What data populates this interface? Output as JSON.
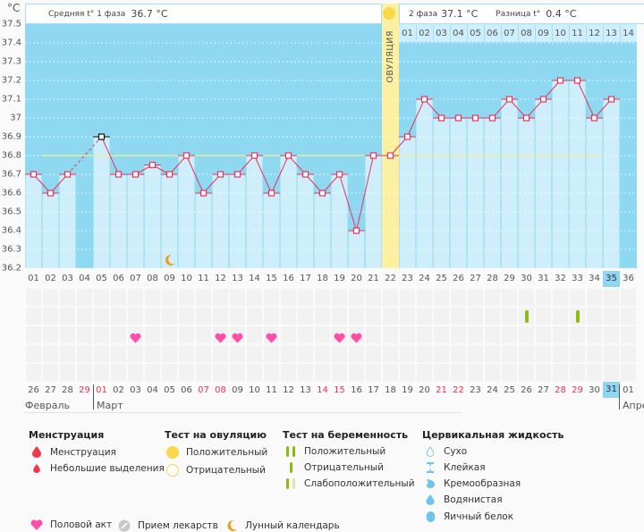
{
  "unit": "°C",
  "header": {
    "phase1_label": "Средняя t° 1 фаза",
    "phase1_value": "36.7 °C",
    "phase2_label": "2 фаза",
    "phase2_value": "37.1 °C",
    "diff_label": "Разница t°",
    "diff_value": "0.4 °C"
  },
  "ovulation_label": "ОВУЛЯЦИЯ",
  "phase2_days": [
    "01",
    "02",
    "03",
    "04",
    "05",
    "06",
    "07",
    "08",
    "09",
    "10",
    "11",
    "12",
    "13",
    "14"
  ],
  "colors": {
    "bar": "#cdeefa",
    "background": "#8fd8f2",
    "line": "#e8345a",
    "coverline": "#f5ef8a",
    "ovulation": "#fdf0a0",
    "heart": "#ff4fa8",
    "test": "#8cbc14"
  },
  "chart_data": {
    "type": "bar",
    "title": "",
    "xlabel": "",
    "ylabel": "°C",
    "ylim": [
      36.2,
      37.5
    ],
    "yticks": [
      "37.5",
      "37.4",
      "37.3",
      "37.2",
      "37.1",
      "37",
      "36.9",
      "36.8",
      "36.7",
      "36.6",
      "36.5",
      "36.4",
      "36.3",
      "36.2"
    ],
    "grid": true,
    "coverline": 36.8,
    "ovulation_day": 22,
    "current_day": 35,
    "categories": [
      "01",
      "02",
      "03",
      "04",
      "05",
      "06",
      "07",
      "08",
      "09",
      "10",
      "11",
      "12",
      "13",
      "14",
      "15",
      "16",
      "17",
      "18",
      "19",
      "20",
      "21",
      "22",
      "23",
      "24",
      "25",
      "26",
      "27",
      "28",
      "29",
      "30",
      "31",
      "32",
      "33",
      "34",
      "35",
      "36"
    ],
    "values": [
      36.7,
      36.6,
      36.7,
      null,
      36.9,
      36.7,
      36.7,
      36.75,
      36.7,
      36.8,
      36.6,
      36.7,
      36.7,
      36.8,
      36.6,
      36.8,
      36.7,
      36.6,
      36.7,
      36.4,
      36.8,
      36.8,
      36.9,
      37.1,
      37.0,
      37.0,
      37.0,
      37.0,
      37.1,
      37.0,
      37.1,
      37.2,
      37.2,
      37.0,
      37.1,
      null
    ],
    "excluded_days": [
      5
    ],
    "series": [
      {
        "name": "Базальная температура",
        "values": [
          36.7,
          36.6,
          36.7,
          null,
          36.9,
          36.7,
          36.7,
          36.75,
          36.7,
          36.8,
          36.6,
          36.7,
          36.7,
          36.8,
          36.6,
          36.8,
          36.7,
          36.6,
          36.7,
          36.4,
          36.8,
          36.8,
          36.9,
          37.1,
          37.0,
          37.0,
          37.0,
          37.0,
          37.1,
          37.0,
          37.1,
          37.2,
          37.2,
          37.0,
          37.1,
          null
        ]
      }
    ],
    "annotations": [
      {
        "type": "lunar",
        "day": 9
      },
      {
        "type": "intercourse",
        "days": [
          7,
          12,
          13,
          15,
          19,
          20
        ]
      },
      {
        "type": "pregnancy-test-negative",
        "days": [
          30,
          33
        ]
      }
    ]
  },
  "calendar_dates": [
    {
      "d": "26",
      "red": false
    },
    {
      "d": "27",
      "red": false
    },
    {
      "d": "28",
      "red": false
    },
    {
      "d": "29",
      "red": true
    },
    {
      "d": "01",
      "red": true
    },
    {
      "d": "02",
      "red": false
    },
    {
      "d": "03",
      "red": false
    },
    {
      "d": "04",
      "red": false
    },
    {
      "d": "05",
      "red": false
    },
    {
      "d": "06",
      "red": false
    },
    {
      "d": "07",
      "red": true
    },
    {
      "d": "08",
      "red": true
    },
    {
      "d": "09",
      "red": false
    },
    {
      "d": "10",
      "red": false
    },
    {
      "d": "11",
      "red": false
    },
    {
      "d": "12",
      "red": false
    },
    {
      "d": "13",
      "red": false
    },
    {
      "d": "14",
      "red": true
    },
    {
      "d": "15",
      "red": true
    },
    {
      "d": "16",
      "red": false
    },
    {
      "d": "17",
      "red": false
    },
    {
      "d": "18",
      "red": false
    },
    {
      "d": "19",
      "red": false
    },
    {
      "d": "20",
      "red": false
    },
    {
      "d": "21",
      "red": true
    },
    {
      "d": "22",
      "red": true
    },
    {
      "d": "23",
      "red": false
    },
    {
      "d": "24",
      "red": false
    },
    {
      "d": "25",
      "red": false
    },
    {
      "d": "26",
      "red": false
    },
    {
      "d": "27",
      "red": false
    },
    {
      "d": "28",
      "red": true
    },
    {
      "d": "29",
      "red": true
    },
    {
      "d": "30",
      "red": false
    },
    {
      "d": "31",
      "red": false
    },
    {
      "d": "01",
      "red": false
    }
  ],
  "months": {
    "feb": "Февраль",
    "mar": "Март",
    "apr": "Апре"
  },
  "legend": {
    "menstruation": {
      "title": "Менструация",
      "items": [
        "Менструация",
        "Небольшие выделения"
      ]
    },
    "ovulation_test": {
      "title": "Тест на овуляцию",
      "items": [
        "Положительный",
        "Отрицательный"
      ]
    },
    "pregnancy_test": {
      "title": "Тест на беременность",
      "items": [
        "Положительный",
        "Отрицательный",
        "Слабоположительный"
      ]
    },
    "cervical": {
      "title": "Цервикальная жидкость",
      "items": [
        "Сухо",
        "Клейкая",
        "Кремообразная",
        "Водянистая",
        "Яичный белок"
      ]
    },
    "misc": [
      "Половой акт",
      "Прием лекарств",
      "Лунный календарь"
    ]
  }
}
